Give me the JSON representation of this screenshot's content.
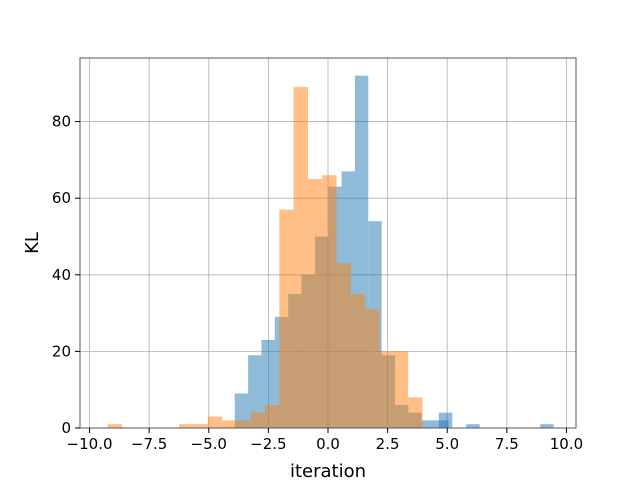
{
  "chart_data": {
    "type": "bar",
    "xlabel": "iteration",
    "ylabel": "KL",
    "xlim": [
      -10.4,
      10.4
    ],
    "ylim": [
      0,
      96.6
    ],
    "grid": true,
    "x_ticks": [
      -10.0,
      -7.5,
      -5.0,
      -2.5,
      0.0,
      2.5,
      5.0,
      7.5,
      10.0
    ],
    "x_tick_labels": [
      "−10.0",
      "−7.5",
      "−5.0",
      "−2.5",
      "0.0",
      "2.5",
      "5.0",
      "7.5",
      "10.0"
    ],
    "y_ticks": [
      0,
      20,
      40,
      60,
      80
    ],
    "y_tick_labels": [
      "0",
      "20",
      "40",
      "60",
      "80"
    ],
    "series": [
      {
        "color": "#1f77b4",
        "alpha": 0.5,
        "bin_width": 0.56,
        "bins": [
          {
            "x0": -3.91,
            "count": 9
          },
          {
            "x0": -3.35,
            "count": 19
          },
          {
            "x0": -2.79,
            "count": 23
          },
          {
            "x0": -2.23,
            "count": 29
          },
          {
            "x0": -1.67,
            "count": 35
          },
          {
            "x0": -1.11,
            "count": 40
          },
          {
            "x0": -0.55,
            "count": 50
          },
          {
            "x0": 0.01,
            "count": 63
          },
          {
            "x0": 0.57,
            "count": 67
          },
          {
            "x0": 1.13,
            "count": 92
          },
          {
            "x0": 1.69,
            "count": 54
          },
          {
            "x0": 2.25,
            "count": 19
          },
          {
            "x0": 2.81,
            "count": 6
          },
          {
            "x0": 3.37,
            "count": 4
          },
          {
            "x0": 3.93,
            "count": 2
          },
          {
            "x0": 4.49,
            "count": 2
          },
          {
            "x0": 5.05,
            "count": 0
          },
          {
            "x0": 4.65,
            "count": 4
          },
          {
            "x0": 5.8,
            "count": 1
          },
          {
            "x0": 8.9,
            "count": 1
          }
        ]
      },
      {
        "color": "#ff7f0e",
        "alpha": 0.5,
        "bin_width": 0.6,
        "bins": [
          {
            "x0": -9.24,
            "count": 1
          },
          {
            "x0": -6.24,
            "count": 1
          },
          {
            "x0": -5.64,
            "count": 1
          },
          {
            "x0": -5.04,
            "count": 3
          },
          {
            "x0": -4.44,
            "count": 2
          },
          {
            "x0": -3.84,
            "count": 2
          },
          {
            "x0": -3.24,
            "count": 4
          },
          {
            "x0": -2.64,
            "count": 6
          },
          {
            "x0": -2.04,
            "count": 57
          },
          {
            "x0": -1.44,
            "count": 89
          },
          {
            "x0": -0.84,
            "count": 65
          },
          {
            "x0": -0.24,
            "count": 66
          },
          {
            "x0": 0.36,
            "count": 43
          },
          {
            "x0": 0.96,
            "count": 35
          },
          {
            "x0": 1.56,
            "count": 31
          },
          {
            "x0": 2.16,
            "count": 20
          },
          {
            "x0": 2.76,
            "count": 20
          },
          {
            "x0": 3.36,
            "count": 8
          }
        ]
      }
    ]
  }
}
